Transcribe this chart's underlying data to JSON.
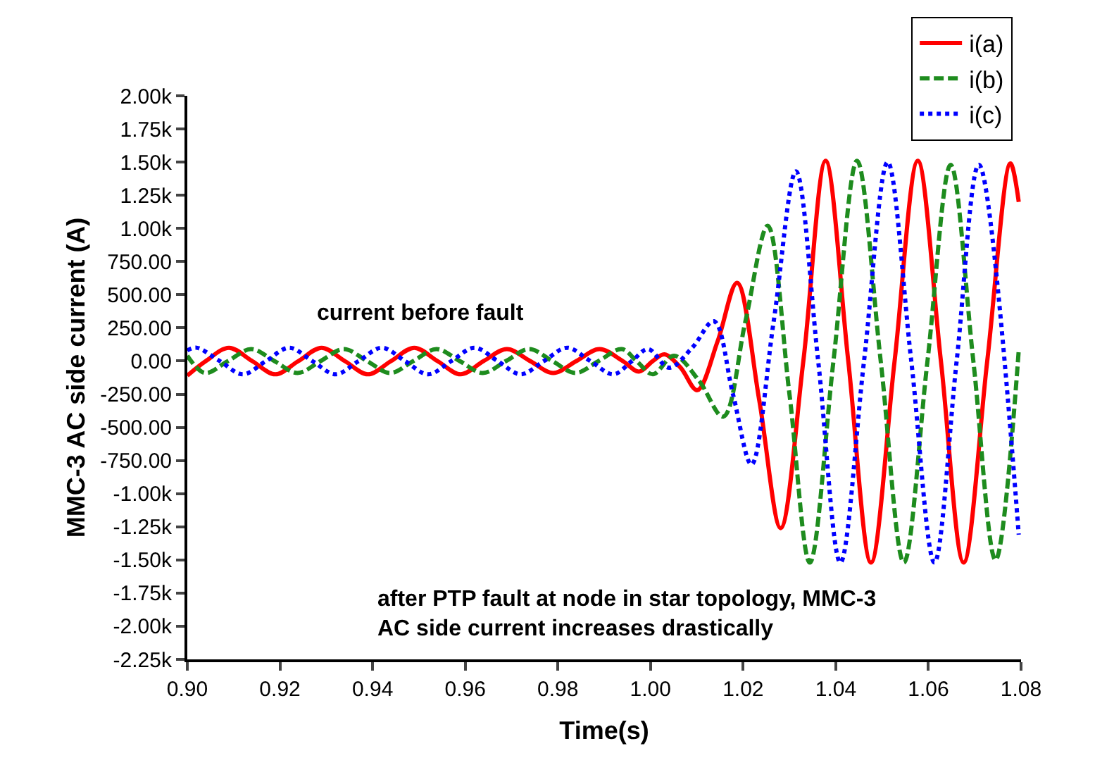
{
  "chart_data": {
    "type": "line",
    "xlabel": "Time(s)",
    "ylabel": "MMC-3 AC side current (A)",
    "xlim": [
      0.9,
      1.08
    ],
    "xticks": [
      {
        "value": 0.9,
        "label": "0.90"
      },
      {
        "value": 0.92,
        "label": "0.92"
      },
      {
        "value": 0.94,
        "label": "0.94"
      },
      {
        "value": 0.96,
        "label": "0.96"
      },
      {
        "value": 0.98,
        "label": "0.98"
      },
      {
        "value": 1.0,
        "label": "1.00"
      },
      {
        "value": 1.02,
        "label": "1.02"
      },
      {
        "value": 1.04,
        "label": "1.04"
      },
      {
        "value": 1.06,
        "label": "1.06"
      },
      {
        "value": 1.08,
        "label": "1.08"
      }
    ],
    "ylim": [
      -2250,
      2000
    ],
    "yticks": [
      {
        "value": -2250,
        "label": "-2.25k"
      },
      {
        "value": -2000,
        "label": "-2.00k"
      },
      {
        "value": -1750,
        "label": "-1.75k"
      },
      {
        "value": -1500,
        "label": "-1.50k"
      },
      {
        "value": -1250,
        "label": "-1.25k"
      },
      {
        "value": -1000,
        "label": "-1.00k"
      },
      {
        "value": -750,
        "label": "-750.00"
      },
      {
        "value": -500,
        "label": "-500.00"
      },
      {
        "value": -250,
        "label": "-250.00"
      },
      {
        "value": 0,
        "label": "0.00"
      },
      {
        "value": 250,
        "label": "250.00"
      },
      {
        "value": 500,
        "label": "500.00"
      },
      {
        "value": 750,
        "label": "750.00"
      },
      {
        "value": 1000,
        "label": "1.00k"
      },
      {
        "value": 1250,
        "label": "1.25k"
      },
      {
        "value": 1500,
        "label": "1.50k"
      },
      {
        "value": 1750,
        "label": "1.75k"
      },
      {
        "value": 2000,
        "label": "2.00k"
      }
    ],
    "legend": "top right",
    "marker": "none",
    "annotations": [
      "current before fault",
      "after PTP fault at node in star topology, MMC-3\nAC side current increases drastically"
    ],
    "series": [
      {
        "name": "i(a)",
        "color": "#ff0000",
        "line_style": "solid",
        "x": [
          0.9,
          0.904,
          0.909,
          0.914,
          0.919,
          0.924,
          0.929,
          0.934,
          0.939,
          0.944,
          0.949,
          0.954,
          0.959,
          0.964,
          0.969,
          0.974,
          0.979,
          0.984,
          0.989,
          0.994,
          0.9975,
          1.0005,
          1.003,
          1.0065,
          1.0101,
          1.0145,
          1.0187,
          1.0235,
          1.0281,
          1.033,
          1.0378,
          1.0427,
          1.0476,
          1.0527,
          1.0577,
          1.0627,
          1.0676,
          1.0727,
          1.0777,
          1.0795
        ],
        "values": [
          -110,
          0,
          100,
          0,
          -100,
          0,
          100,
          0,
          -100,
          0,
          100,
          0,
          -100,
          0,
          90,
          0,
          -90,
          0,
          90,
          0,
          -80,
          0,
          50,
          -50,
          -220,
          150,
          590,
          -300,
          -1260,
          0,
          1510,
          0,
          -1520,
          0,
          1510,
          0,
          -1520,
          0,
          1490,
          1200
        ]
      },
      {
        "name": "i(b)",
        "color": "#1e8c1e",
        "line_style": "dashed",
        "x": [
          0.9,
          0.9038,
          0.9088,
          0.9138,
          0.9188,
          0.9238,
          0.9288,
          0.9338,
          0.9388,
          0.9438,
          0.9488,
          0.9538,
          0.9588,
          0.9638,
          0.9688,
          0.9738,
          0.9788,
          0.9838,
          0.9888,
          0.9938,
          0.997,
          1.0005,
          1.0051,
          1.0105,
          1.0157,
          1.0205,
          1.0253,
          1.03,
          1.0344,
          1.0395,
          1.0446,
          1.0497,
          1.0547,
          1.0598,
          1.0648,
          1.0697,
          1.0745,
          1.0795
        ],
        "values": [
          40,
          -90,
          0,
          90,
          0,
          -90,
          0,
          90,
          0,
          -90,
          0,
          90,
          0,
          -90,
          0,
          90,
          0,
          -90,
          0,
          90,
          0,
          -100,
          40,
          -150,
          -420,
          300,
          1020,
          -250,
          -1520,
          0,
          1510,
          0,
          -1520,
          0,
          1480,
          0,
          -1500,
          80
        ]
      },
      {
        "name": "i(c)",
        "color": "#0000ff",
        "line_style": "dotted",
        "x": [
          0.9,
          0.902,
          0.907,
          0.912,
          0.917,
          0.922,
          0.927,
          0.932,
          0.937,
          0.942,
          0.947,
          0.952,
          0.957,
          0.962,
          0.967,
          0.972,
          0.977,
          0.982,
          0.987,
          0.992,
          0.996,
          0.9995,
          1.004,
          1.009,
          1.0137,
          1.0178,
          1.0218,
          1.0266,
          1.0314,
          1.0362,
          1.041,
          1.0461,
          1.0512,
          1.0563,
          1.0613,
          1.0661,
          1.0709,
          1.0795
        ],
        "values": [
          80,
          100,
          0,
          -100,
          0,
          100,
          0,
          -100,
          0,
          100,
          0,
          -100,
          0,
          100,
          0,
          -100,
          0,
          100,
          0,
          -100,
          0,
          90,
          -50,
          100,
          300,
          -250,
          -780,
          300,
          1430,
          0,
          -1520,
          0,
          1500,
          0,
          -1520,
          0,
          1480,
          -1310
        ]
      }
    ]
  }
}
